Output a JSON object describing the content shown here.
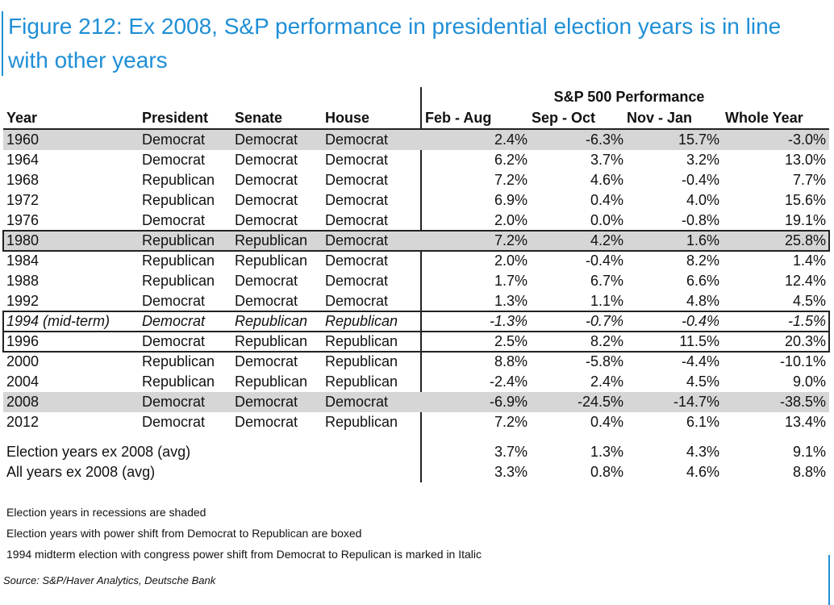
{
  "title": "Figure 212: Ex 2008, S&P performance in presidential election years is in line with other years",
  "group_header": "S&P 500 Performance",
  "headers": {
    "year": "Year",
    "president": "President",
    "senate": "Senate",
    "house": "House",
    "feb_aug": "Feb - Aug",
    "sep_oct": "Sep - Oct",
    "nov_jan": "Nov - Jan",
    "whole_year": "Whole Year"
  },
  "rows": [
    {
      "year": "1960",
      "president": "Democrat",
      "senate": "Democrat",
      "house": "Democrat",
      "feb_aug": "2.4%",
      "sep_oct": "-6.3%",
      "nov_jan": "15.7%",
      "whole_year": "-3.0%",
      "shaded": true,
      "boxed": false,
      "italic": false
    },
    {
      "year": "1964",
      "president": "Democrat",
      "senate": "Democrat",
      "house": "Democrat",
      "feb_aug": "6.2%",
      "sep_oct": "3.7%",
      "nov_jan": "3.2%",
      "whole_year": "13.0%",
      "shaded": false,
      "boxed": false,
      "italic": false
    },
    {
      "year": "1968",
      "president": "Republican",
      "senate": "Democrat",
      "house": "Democrat",
      "feb_aug": "7.2%",
      "sep_oct": "4.6%",
      "nov_jan": "-0.4%",
      "whole_year": "7.7%",
      "shaded": false,
      "boxed": false,
      "italic": false
    },
    {
      "year": "1972",
      "president": "Republican",
      "senate": "Democrat",
      "house": "Democrat",
      "feb_aug": "6.9%",
      "sep_oct": "0.4%",
      "nov_jan": "4.0%",
      "whole_year": "15.6%",
      "shaded": false,
      "boxed": false,
      "italic": false
    },
    {
      "year": "1976",
      "president": "Democrat",
      "senate": "Democrat",
      "house": "Democrat",
      "feb_aug": "2.0%",
      "sep_oct": "0.0%",
      "nov_jan": "-0.8%",
      "whole_year": "19.1%",
      "shaded": false,
      "boxed": false,
      "italic": false
    },
    {
      "year": "1980",
      "president": "Republican",
      "senate": "Republican",
      "house": "Democrat",
      "feb_aug": "7.2%",
      "sep_oct": "4.2%",
      "nov_jan": "1.6%",
      "whole_year": "25.8%",
      "shaded": true,
      "boxed": true,
      "italic": false
    },
    {
      "year": "1984",
      "president": "Republican",
      "senate": "Republican",
      "house": "Democrat",
      "feb_aug": "2.0%",
      "sep_oct": "-0.4%",
      "nov_jan": "8.2%",
      "whole_year": "1.4%",
      "shaded": false,
      "boxed": false,
      "italic": false
    },
    {
      "year": "1988",
      "president": "Republican",
      "senate": "Democrat",
      "house": "Democrat",
      "feb_aug": "1.7%",
      "sep_oct": "6.7%",
      "nov_jan": "6.6%",
      "whole_year": "12.4%",
      "shaded": false,
      "boxed": false,
      "italic": false
    },
    {
      "year": "1992",
      "president": "Democrat",
      "senate": "Democrat",
      "house": "Democrat",
      "feb_aug": "1.3%",
      "sep_oct": "1.1%",
      "nov_jan": "4.8%",
      "whole_year": "4.5%",
      "shaded": false,
      "boxed": false,
      "italic": false
    },
    {
      "year": "1994 (mid-term)",
      "president": "Democrat",
      "senate": "Republican",
      "house": "Republican",
      "feb_aug": "-1.3%",
      "sep_oct": "-0.7%",
      "nov_jan": "-0.4%",
      "whole_year": "-1.5%",
      "shaded": false,
      "boxed": true,
      "italic": true
    },
    {
      "year": "1996",
      "president": "Democrat",
      "senate": "Republican",
      "house": "Republican",
      "feb_aug": "2.5%",
      "sep_oct": "8.2%",
      "nov_jan": "11.5%",
      "whole_year": "20.3%",
      "shaded": false,
      "boxed": true,
      "italic": false
    },
    {
      "year": "2000",
      "president": "Republican",
      "senate": "Democrat",
      "house": "Republican",
      "feb_aug": "8.8%",
      "sep_oct": "-5.8%",
      "nov_jan": "-4.4%",
      "whole_year": "-10.1%",
      "shaded": false,
      "boxed": false,
      "italic": false
    },
    {
      "year": "2004",
      "president": "Republican",
      "senate": "Republican",
      "house": "Republican",
      "feb_aug": "-2.4%",
      "sep_oct": "2.4%",
      "nov_jan": "4.5%",
      "whole_year": "9.0%",
      "shaded": false,
      "boxed": false,
      "italic": false
    },
    {
      "year": "2008",
      "president": "Democrat",
      "senate": "Democrat",
      "house": "Democrat",
      "feb_aug": "-6.9%",
      "sep_oct": "-24.5%",
      "nov_jan": "-14.7%",
      "whole_year": "-38.5%",
      "shaded": true,
      "boxed": false,
      "italic": false
    },
    {
      "year": "2012",
      "president": "Democrat",
      "senate": "Democrat",
      "house": "Republican",
      "feb_aug": "7.2%",
      "sep_oct": "0.4%",
      "nov_jan": "6.1%",
      "whole_year": "13.4%",
      "shaded": false,
      "boxed": false,
      "italic": false
    }
  ],
  "averages": [
    {
      "label": "Election years ex 2008 (avg)",
      "feb_aug": "3.7%",
      "sep_oct": "1.3%",
      "nov_jan": "4.3%",
      "whole_year": "9.1%"
    },
    {
      "label": "All years ex 2008 (avg)",
      "feb_aug": "3.3%",
      "sep_oct": "0.8%",
      "nov_jan": "4.6%",
      "whole_year": "8.8%"
    }
  ],
  "notes": [
    "Election years in recessions are shaded",
    "Election years with power shift from Democrat to Republican are boxed",
    "1994 midterm election with congress power shift from Democrat to Repulican is marked in Italic"
  ],
  "source": "Source: S&P/Haver Analytics, Deutsche Bank",
  "colors": {
    "accent": "#1f8fd6",
    "shade": "#d6d6d6",
    "rule": "#222222"
  }
}
